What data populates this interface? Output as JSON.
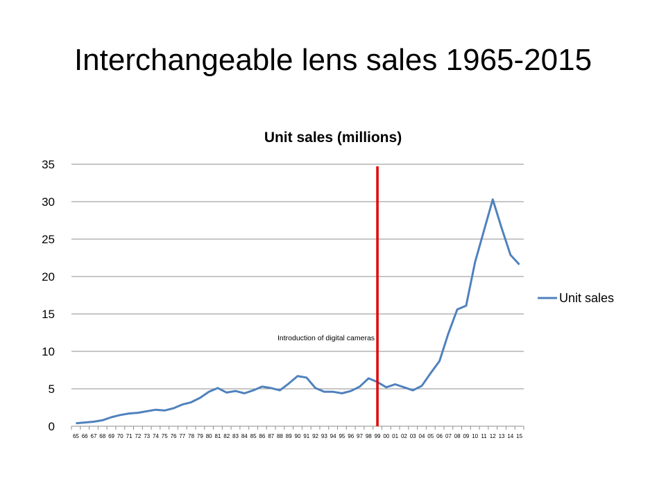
{
  "slide": {
    "title": "Interchangeable lens sales 1965-2015"
  },
  "chart_data": {
    "type": "line",
    "title": "Unit sales (millions)",
    "xlabel": "",
    "ylabel": "",
    "ylim": [
      0,
      35
    ],
    "yticks": [
      0,
      5,
      10,
      15,
      20,
      25,
      30,
      35
    ],
    "grid": true,
    "legend_position": "right",
    "categories": [
      "65",
      "66",
      "67",
      "68",
      "69",
      "70",
      "71",
      "72",
      "73",
      "74",
      "75",
      "76",
      "77",
      "78",
      "79",
      "80",
      "81",
      "82",
      "83",
      "84",
      "85",
      "86",
      "87",
      "88",
      "89",
      "90",
      "91",
      "92",
      "93",
      "94",
      "95",
      "96",
      "97",
      "98",
      "99",
      "00",
      "01",
      "02",
      "03",
      "04",
      "05",
      "06",
      "07",
      "08",
      "09",
      "10",
      "11",
      "12",
      "13",
      "14",
      "15"
    ],
    "series": [
      {
        "name": "Unit sales",
        "color": "#4f81bd",
        "values": [
          0.4,
          0.5,
          0.6,
          0.8,
          1.2,
          1.5,
          1.7,
          1.8,
          2.0,
          2.2,
          2.1,
          2.4,
          2.9,
          3.2,
          3.8,
          4.6,
          5.1,
          4.5,
          4.7,
          4.4,
          4.8,
          5.3,
          5.1,
          4.8,
          5.7,
          6.7,
          6.5,
          5.1,
          4.6,
          4.6,
          4.4,
          4.7,
          5.3,
          6.4,
          5.9,
          5.2,
          5.6,
          5.2,
          4.8,
          5.4,
          7.1,
          8.7,
          12.4,
          15.6,
          16.1,
          21.9,
          26.1,
          30.3,
          26.5,
          22.9,
          21.6
        ]
      }
    ],
    "annotations": [
      {
        "text": "Introduction of digital cameras",
        "at_category": "99",
        "line_color": "#e00000"
      }
    ]
  }
}
